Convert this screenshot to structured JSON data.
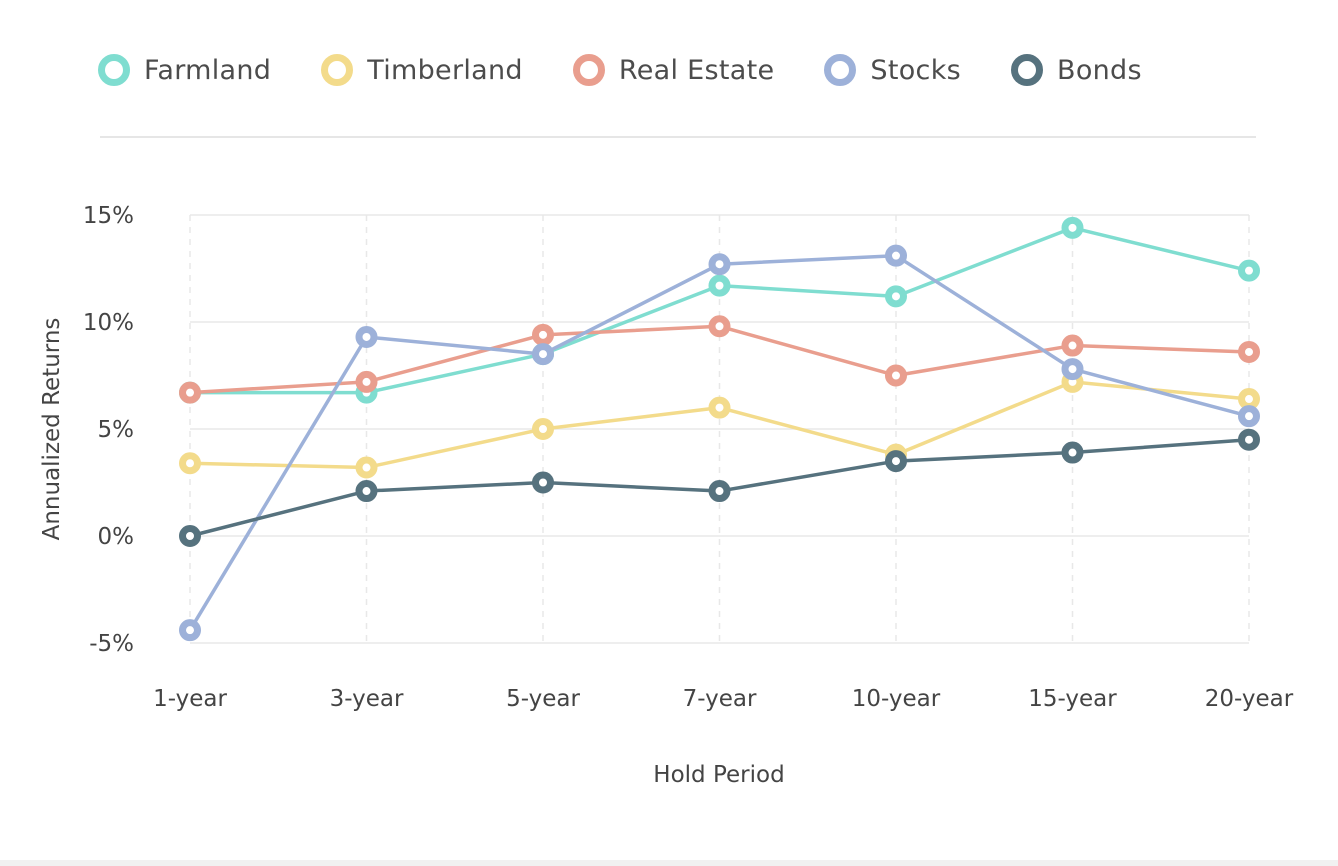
{
  "chart_data": {
    "type": "line",
    "title": "",
    "xlabel": "Hold Period",
    "ylabel": "Annualized Returns",
    "categories": [
      "1-year",
      "3-year",
      "5-year",
      "7-year",
      "10-year",
      "15-year",
      "20-year"
    ],
    "ylim": [
      -5,
      15
    ],
    "yticks": [
      15,
      10,
      5,
      0,
      -5
    ],
    "ytick_labels": [
      "15%",
      "10%",
      "5%",
      "0%",
      "-5%"
    ],
    "grid": true,
    "legend_position": "top-left",
    "series": [
      {
        "name": "Farmland",
        "color": "#7fddd0",
        "values": [
          6.7,
          6.7,
          8.5,
          11.7,
          11.2,
          14.4,
          12.4
        ]
      },
      {
        "name": "Timberland",
        "color": "#f3db8b",
        "values": [
          3.4,
          3.2,
          5.0,
          6.0,
          3.8,
          7.2,
          6.4
        ]
      },
      {
        "name": "Real Estate",
        "color": "#e99e8e",
        "values": [
          6.7,
          7.2,
          9.4,
          9.8,
          7.5,
          8.9,
          8.6
        ]
      },
      {
        "name": "Stocks",
        "color": "#9db1d9",
        "values": [
          -4.4,
          9.3,
          8.5,
          12.7,
          13.1,
          7.8,
          5.6
        ]
      },
      {
        "name": "Bonds",
        "color": "#56727e",
        "values": [
          0.0,
          2.1,
          2.5,
          2.1,
          3.5,
          3.9,
          4.5
        ]
      }
    ]
  }
}
